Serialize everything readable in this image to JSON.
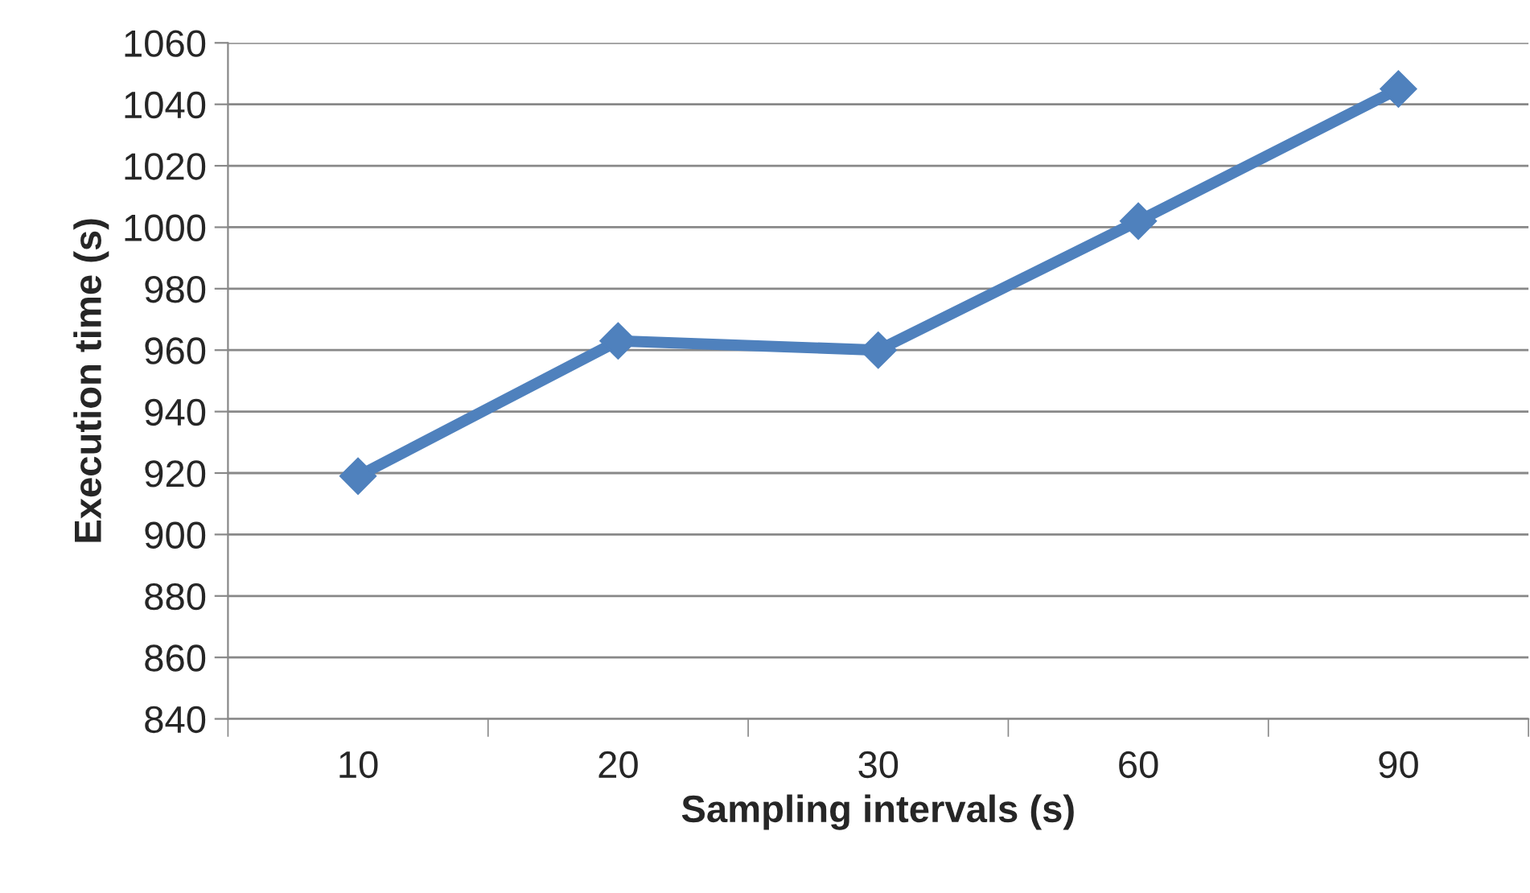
{
  "chart_data": {
    "type": "line",
    "xlabel": "Sampling intervals (s)",
    "ylabel": "Execution time (s)",
    "categories": [
      "10",
      "20",
      "30",
      "60",
      "90"
    ],
    "series": [
      {
        "color": "#4f81bd",
        "values": [
          919,
          963,
          960,
          1002,
          1045
        ]
      }
    ],
    "ylim": [
      840,
      1060
    ],
    "yticks": [
      840,
      860,
      880,
      900,
      920,
      940,
      960,
      980,
      1000,
      1020,
      1040,
      1060
    ],
    "grid": "y",
    "legend": false,
    "marker": "diamond",
    "line_style": "solid"
  }
}
